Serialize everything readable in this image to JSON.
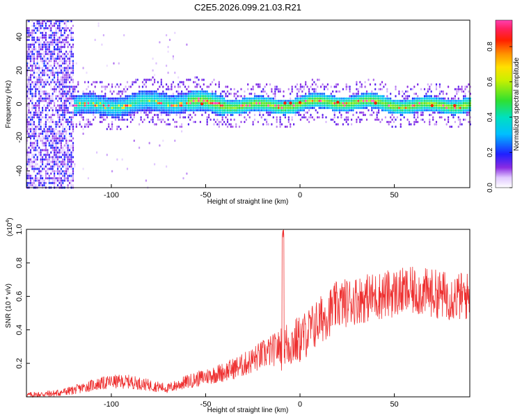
{
  "title": "C2E5.2026.099.21.03.R21",
  "chart_data": [
    {
      "type": "heatmap",
      "xlabel": "Height of straight line (km)",
      "ylabel": "Frequency (Hz)",
      "xlim": [
        -145,
        90
      ],
      "ylim": [
        -50,
        50
      ],
      "xticks": [
        -100,
        -50,
        0,
        50
      ],
      "yticks": [
        -40,
        -20,
        0,
        20,
        40
      ],
      "colormap": "rainbow (white-violet-blue-cyan-green-yellow-orange-red-magenta)",
      "colorbar": {
        "label": "Normalized spectral amplitude",
        "range": [
          0.0,
          0.95
        ],
        "ticks": [
          "0.0",
          "0.2",
          "0.4",
          "0.6",
          "0.8"
        ]
      },
      "features": {
        "band_center_hz": 0,
        "noise_region_km": [
          -145,
          -120
        ],
        "band_start_km": -120,
        "peak_amplitude": 0.95
      },
      "grid": false
    },
    {
      "type": "line",
      "xlabel": "Height of straight line (km)",
      "ylabel": "SNR (10 * v/v)",
      "ymult": "(x10",
      "ymult_exp": "4",
      "ymult_close": ")",
      "xlim": [
        -145,
        90
      ],
      "ylim": [
        0,
        1.0
      ],
      "xticks": [
        -100,
        -50,
        0,
        50
      ],
      "yticks": [
        "0.2",
        "0.4",
        "0.6",
        "0.8",
        "1.0"
      ],
      "color": "#ee3030",
      "envelope": {
        "x": [
          -145,
          -130,
          -120,
          -110,
          -100,
          -90,
          -80,
          -70,
          -60,
          -50,
          -40,
          -30,
          -20,
          -10,
          0,
          10,
          20,
          30,
          40,
          50,
          60,
          70,
          80,
          90
        ],
        "y": [
          0.01,
          0.02,
          0.04,
          0.07,
          0.09,
          0.09,
          0.07,
          0.05,
          0.09,
          0.12,
          0.15,
          0.19,
          0.25,
          0.3,
          0.34,
          0.45,
          0.55,
          0.58,
          0.6,
          0.62,
          0.63,
          0.62,
          0.6,
          0.6
        ]
      },
      "noise_amplitude": [
        0.015,
        0.06
      ],
      "spike": {
        "x": -9,
        "y": 1.0
      },
      "grid": false
    }
  ]
}
